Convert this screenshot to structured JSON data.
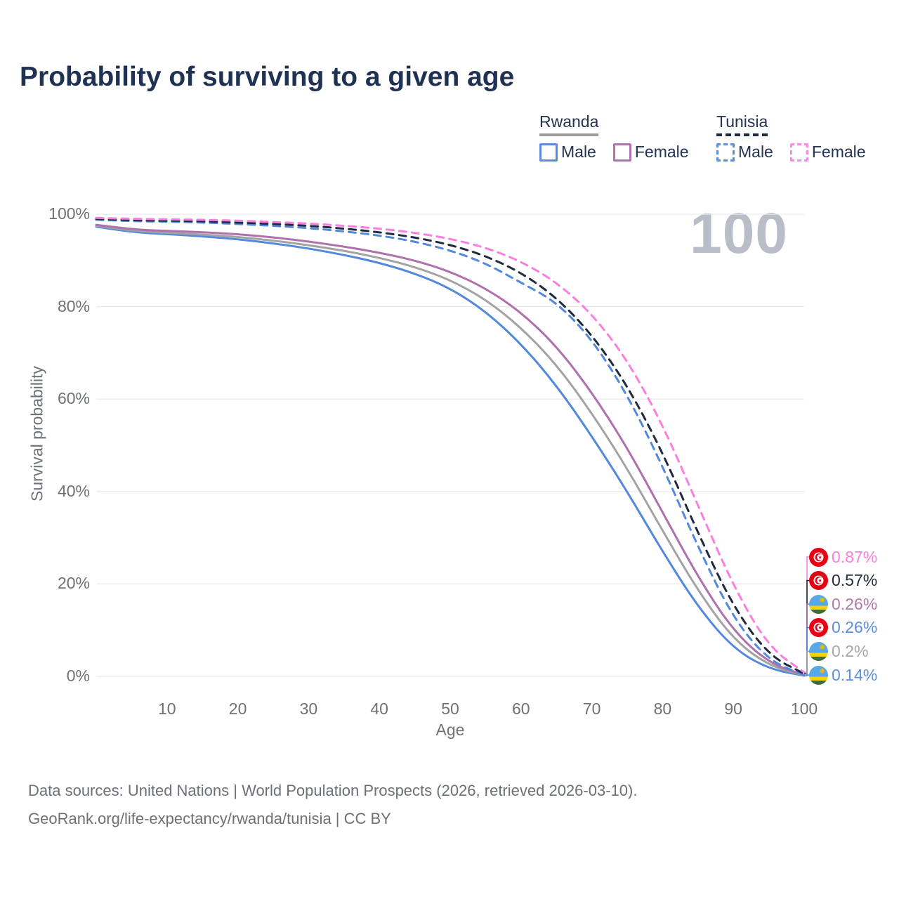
{
  "title": "Probability of surviving to a given age",
  "watermark": "100",
  "legend": {
    "rwanda": {
      "title": "Rwanda",
      "male_label": "Male",
      "female_label": "Female"
    },
    "tunisia": {
      "title": "Tunisia",
      "male_label": "Male",
      "female_label": "Female"
    }
  },
  "colors": {
    "male_line": "#5289dd",
    "female_rwanda_line": "#b06fad",
    "rwanda_total_line": "#a3a3a3",
    "tunisia_total_line": "#1e2b3e",
    "tunisia_female_line": "#fb7ee0",
    "grid": "#ebebed",
    "axis_text": "#6e7278",
    "title_text": "#1f3253",
    "watermark_text": "#b9bdc8"
  },
  "chart_data": {
    "type": "line",
    "title": "Probability of surviving to a given age",
    "xlabel": "Age",
    "ylabel": "Survival probability",
    "xlim": [
      0,
      100
    ],
    "ylim": [
      0,
      100
    ],
    "grid": "horizontal-only",
    "x": [
      0,
      5,
      10,
      15,
      20,
      25,
      30,
      35,
      40,
      45,
      50,
      55,
      60,
      65,
      70,
      75,
      80,
      85,
      90,
      95,
      100
    ],
    "x_ticks": [
      10,
      20,
      30,
      40,
      50,
      60,
      70,
      80,
      90,
      100
    ],
    "y_ticks": [
      {
        "value": 0,
        "label": "0%"
      },
      {
        "value": 20,
        "label": "20%"
      },
      {
        "value": 40,
        "label": "40%"
      },
      {
        "value": 60,
        "label": "60%"
      },
      {
        "value": 80,
        "label": "80%"
      },
      {
        "value": 100,
        "label": "100%"
      }
    ],
    "series": [
      {
        "id": "rwanda-male",
        "name": "Rwanda Male",
        "country": "rwanda",
        "color": "#5289dd",
        "dash": false,
        "values": [
          97.3,
          96.1,
          95.7,
          95.2,
          94.6,
          93.7,
          92.6,
          91.2,
          89.5,
          87.2,
          84.0,
          79.0,
          72.0,
          63.0,
          52.0,
          40.0,
          27.0,
          15.0,
          6.0,
          1.6,
          0.14
        ]
      },
      {
        "id": "rwanda-total",
        "name": "Rwanda",
        "country": "rwanda",
        "color": "#a3a3a3",
        "dash": false,
        "values": [
          97.5,
          96.4,
          96.0,
          95.6,
          95.1,
          94.3,
          93.3,
          92.1,
          90.6,
          88.6,
          85.8,
          81.6,
          75.5,
          67.5,
          57.0,
          45.0,
          31.5,
          18.5,
          8.0,
          2.3,
          0.2
        ]
      },
      {
        "id": "rwanda-female",
        "name": "Rwanda Female",
        "country": "rwanda",
        "color": "#b06fad",
        "dash": false,
        "values": [
          97.7,
          96.7,
          96.4,
          96.1,
          95.7,
          95.0,
          94.1,
          93.0,
          91.7,
          90.0,
          87.6,
          84.0,
          78.8,
          71.5,
          61.5,
          49.5,
          35.5,
          21.5,
          9.8,
          2.9,
          0.26
        ]
      },
      {
        "id": "tunisia-male",
        "name": "Tunisia Male",
        "country": "tunisia",
        "color": "#5289dd",
        "dash": true,
        "values": [
          98.8,
          98.5,
          98.4,
          98.2,
          97.9,
          97.5,
          97.0,
          96.3,
          95.4,
          94.1,
          92.2,
          89.4,
          85.2,
          81.0,
          73.0,
          61.0,
          45.5,
          28.0,
          12.5,
          3.4,
          0.26
        ]
      },
      {
        "id": "tunisia-total",
        "name": "Tunisia",
        "country": "tunisia",
        "color": "#1e2b3e",
        "dash": true,
        "values": [
          99.0,
          98.7,
          98.6,
          98.5,
          98.2,
          97.9,
          97.5,
          96.9,
          96.1,
          95.0,
          93.4,
          91.0,
          87.4,
          82.0,
          74.0,
          63.0,
          48.5,
          31.0,
          15.0,
          4.5,
          0.57
        ]
      },
      {
        "id": "tunisia-female",
        "name": "Tunisia Female",
        "country": "tunisia",
        "color": "#fb7ee0",
        "dash": true,
        "values": [
          99.2,
          99.0,
          98.9,
          98.8,
          98.6,
          98.3,
          98.0,
          97.5,
          96.9,
          96.0,
          94.7,
          92.8,
          89.8,
          85.3,
          78.5,
          68.5,
          54.5,
          37.0,
          19.5,
          6.3,
          0.87
        ]
      }
    ],
    "end_labels": [
      {
        "series": "tunisia-female",
        "flag": "tunisia",
        "text": "0.87%",
        "text_color": "#fb7ee0"
      },
      {
        "series": "tunisia-total",
        "flag": "tunisia",
        "text": "0.57%",
        "text_color": "#222b3d"
      },
      {
        "series": "rwanda-female",
        "flag": "rwanda",
        "text": "0.26%",
        "text_color": "#b279ae"
      },
      {
        "series": "tunisia-male",
        "flag": "tunisia",
        "text": "0.26%",
        "text_color": "#5b8ee0"
      },
      {
        "series": "rwanda-total",
        "flag": "rwanda",
        "text": "0.2%",
        "text_color": "#a6a6a6"
      },
      {
        "series": "rwanda-male",
        "flag": "rwanda",
        "text": "0.14%",
        "text_color": "#5b8ee0"
      }
    ],
    "legend_position": "top-right"
  },
  "footer": {
    "line1": "Data sources: United Nations | World Population Prospects (2026, retrieved 2026-03-10).",
    "line2": "GeoRank.org/life-expectancy/rwanda/tunisia | CC BY"
  }
}
